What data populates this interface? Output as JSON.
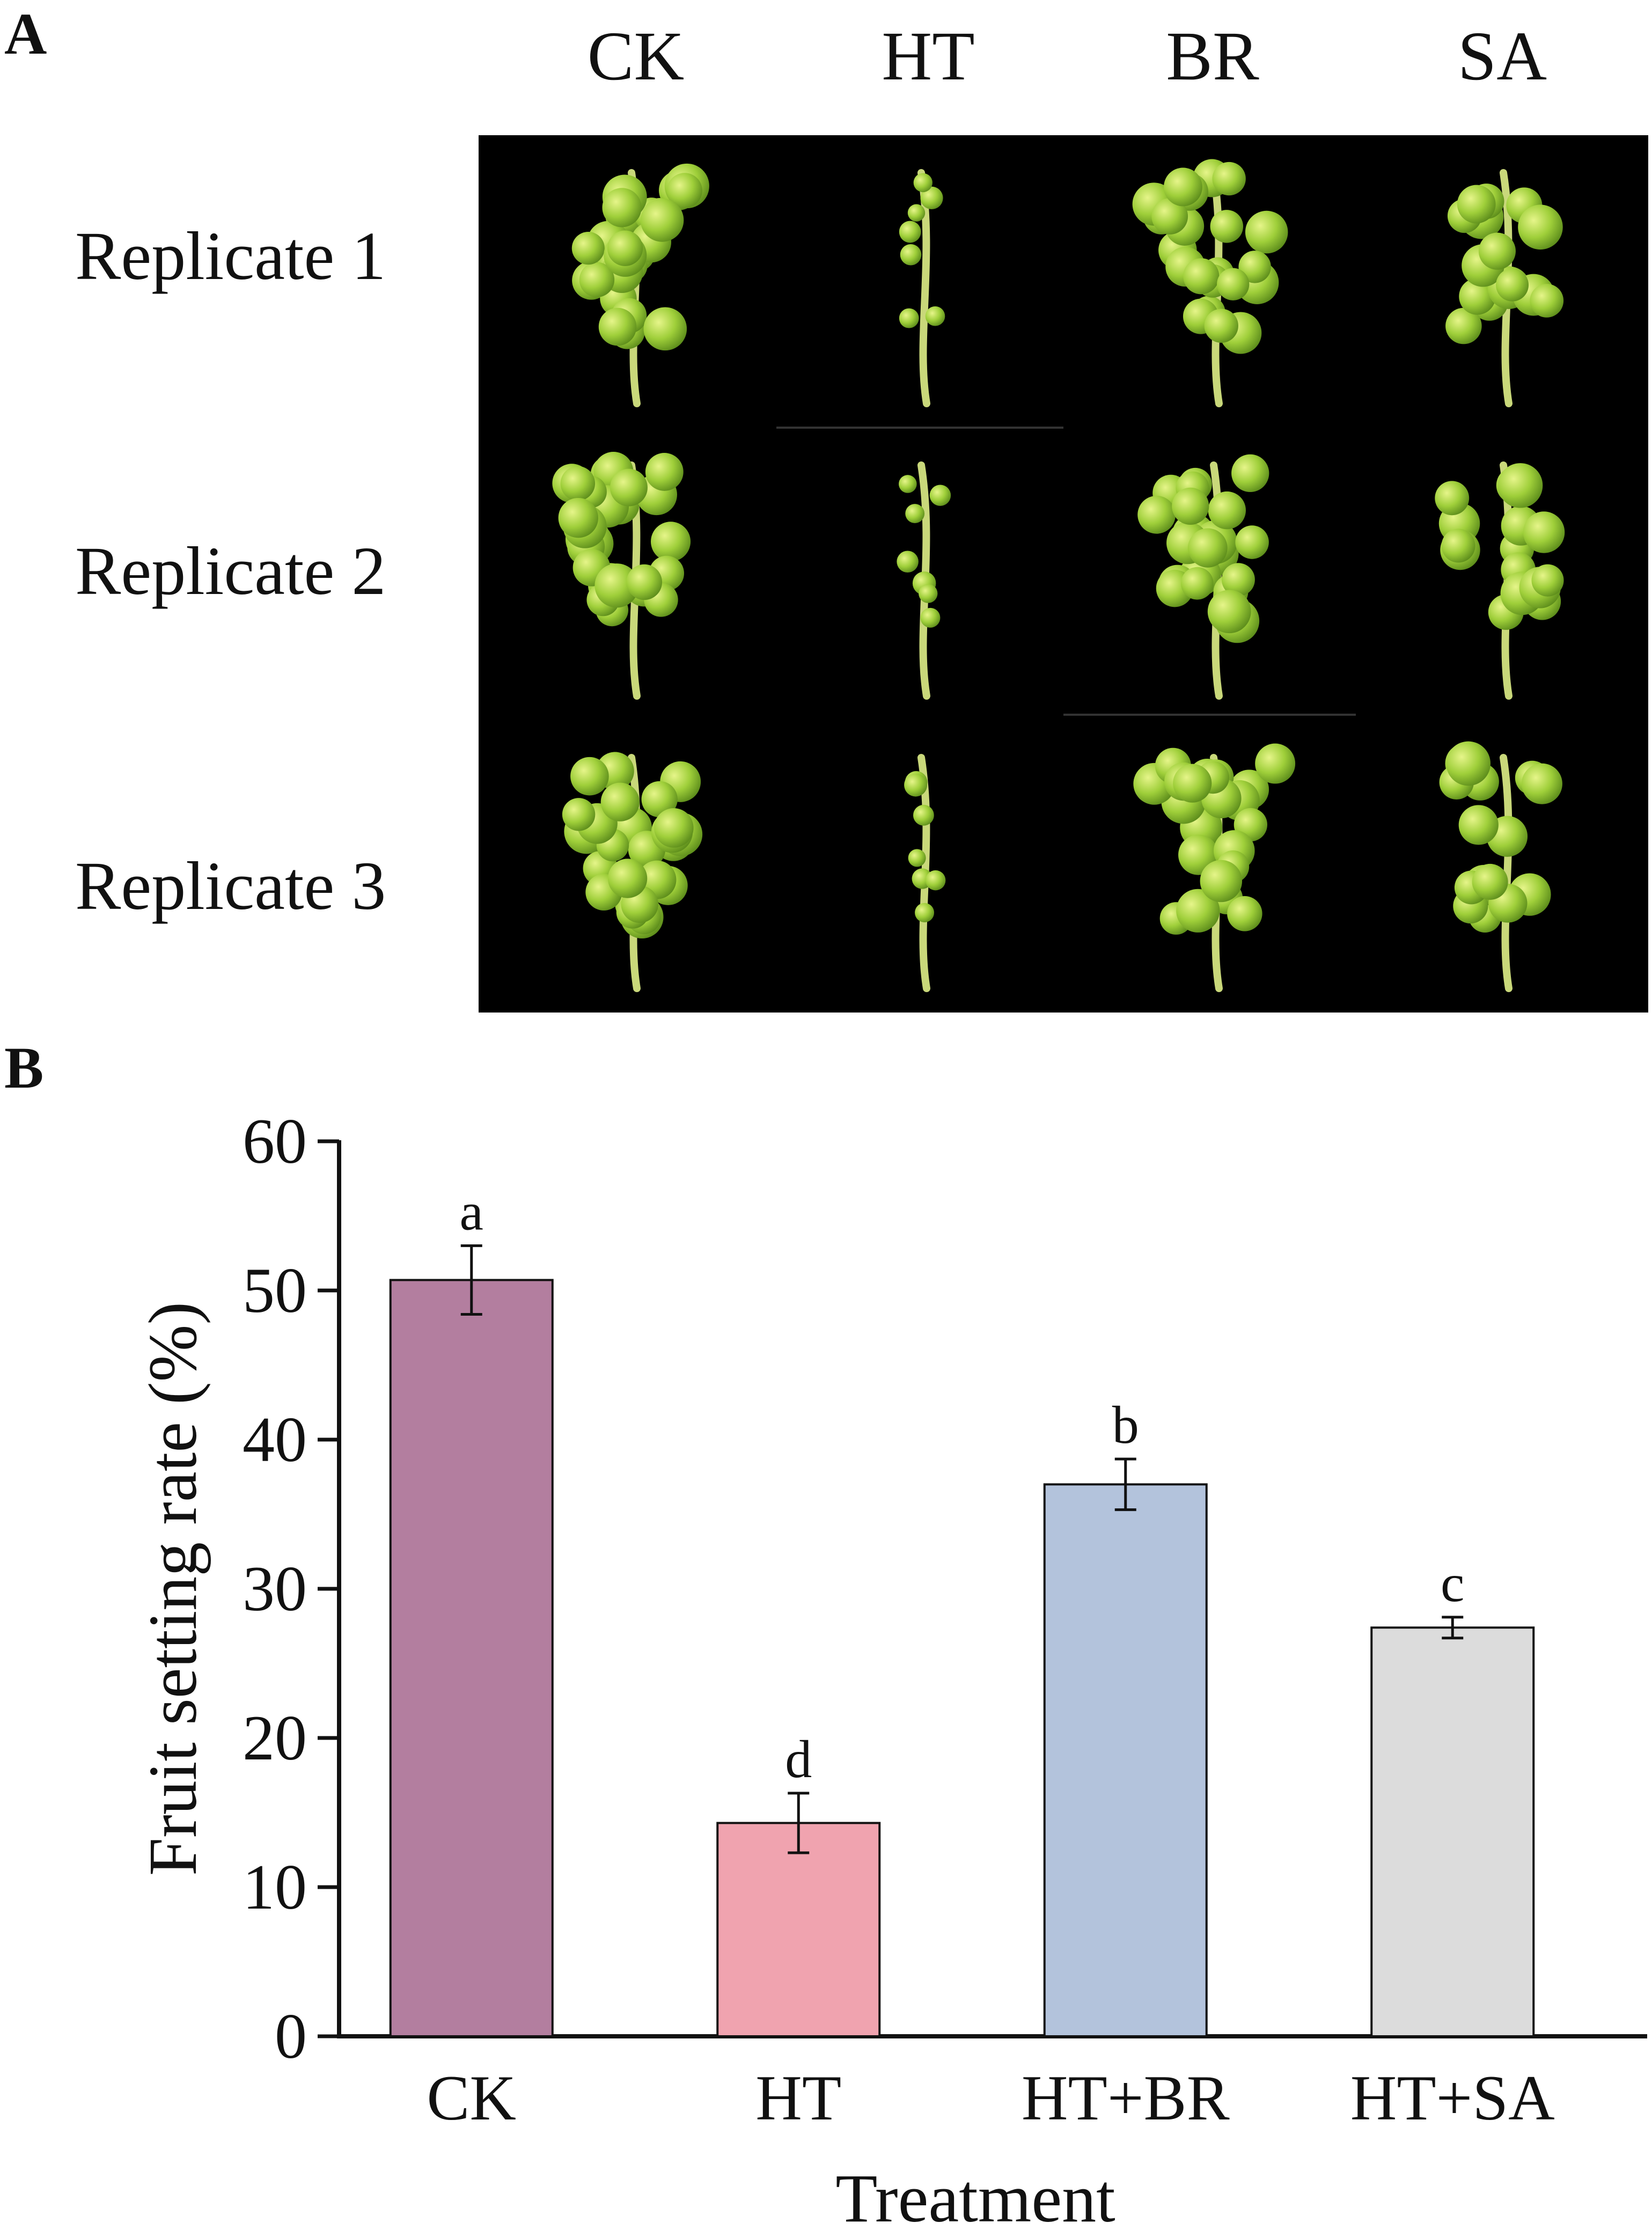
{
  "panel_a": {
    "label": "A",
    "columns": [
      "CK",
      "HT",
      "BR",
      "SA"
    ],
    "rows": [
      "Replicate 1",
      "Replicate 2",
      "Replicate 3"
    ],
    "photo_description_icon": "grape-cluster-photo"
  },
  "panel_b": {
    "label": "B"
  },
  "chart_data": {
    "type": "bar",
    "title": "",
    "xlabel": "Treatment",
    "ylabel": "Fruit setting rate (%)",
    "ylim": [
      0,
      60
    ],
    "yticks": [
      0,
      10,
      20,
      30,
      40,
      50,
      60
    ],
    "categories": [
      "CK",
      "HT",
      "HT+BR",
      "HT+SA"
    ],
    "values": [
      50.7,
      14.3,
      37.0,
      27.4
    ],
    "errors": [
      2.3,
      2.0,
      1.7,
      0.7
    ],
    "significance": [
      "a",
      "d",
      "b",
      "c"
    ],
    "colors": [
      "#b37e9f",
      "#f0a3af",
      "#b3c3dc",
      "#dcdcdc"
    ],
    "grid": false,
    "legend": "none"
  }
}
